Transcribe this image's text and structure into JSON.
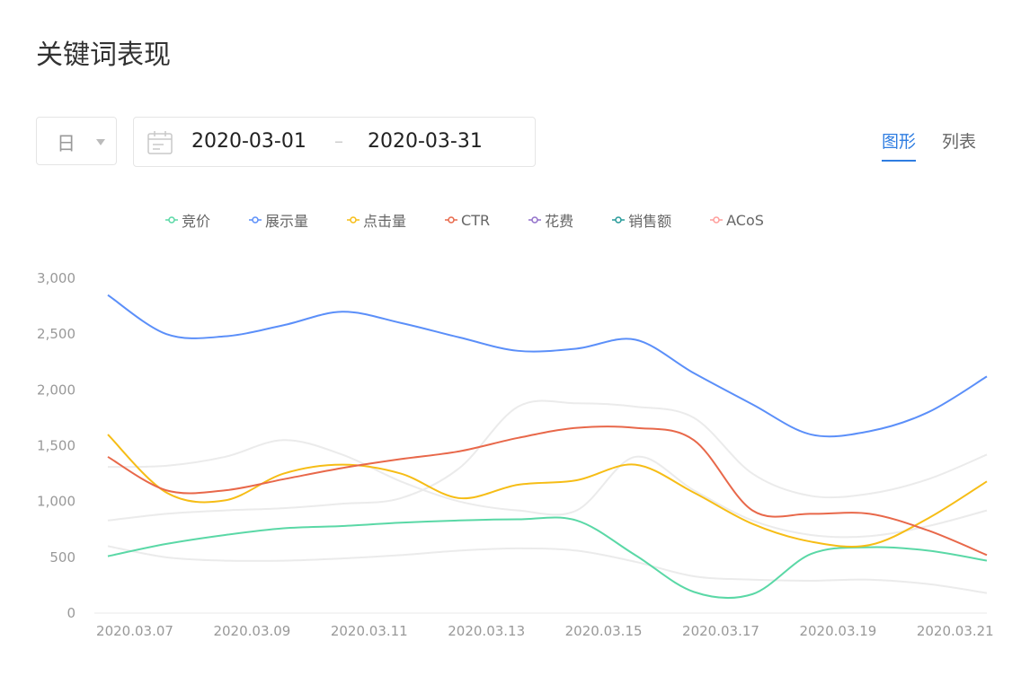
{
  "header": {
    "title": "关键词表现"
  },
  "controls": {
    "period": "日",
    "date_start": "2020-03-01",
    "date_separator": "–",
    "date_end": "2020-03-31",
    "tabs": [
      "图形",
      "列表"
    ]
  },
  "chart_data": {
    "type": "line",
    "categories": [
      "2020.03.07",
      null,
      "2020.03.09",
      null,
      "2020.03.11",
      null,
      "2020.03.13",
      null,
      "2020.03.15",
      null,
      "2020.03.17",
      null,
      "2020.03.19",
      null,
      "2020.03.21",
      null
    ],
    "ylim": [
      0,
      3000
    ],
    "yticks": [
      0,
      500,
      {
        "value": 1000,
        "label": "1,000"
      },
      {
        "value": 1500,
        "label": "1,500"
      },
      {
        "value": 2000,
        "label": "2,000"
      },
      {
        "value": 2500,
        "label": "2,500"
      },
      {
        "value": 3000,
        "label": "3,000"
      }
    ],
    "smooth": true,
    "muted_color": "#ebebeb",
    "series": [
      {
        "name": "竞价",
        "color": "#5ad8a6",
        "values": [
          510,
          620,
          700,
          760,
          780,
          810,
          830,
          840,
          830,
          520,
          190,
          170,
          530,
          590,
          560,
          470
        ]
      },
      {
        "name": "展示量",
        "color": "#5b8ff9",
        "values": [
          2850,
          2500,
          2480,
          2580,
          2700,
          2600,
          2470,
          2350,
          2370,
          2450,
          2150,
          1870,
          1600,
          1630,
          1800,
          2120
        ]
      },
      {
        "name": "点击量",
        "color": "#f6bd16",
        "values": [
          1600,
          1080,
          1010,
          1250,
          1330,
          1250,
          1030,
          1150,
          1190,
          1330,
          1080,
          800,
          640,
          610,
          850,
          1180
        ]
      },
      {
        "name": "CTR",
        "color": "#e8684a",
        "values": [
          1400,
          1100,
          1100,
          1200,
          1300,
          1380,
          1450,
          1570,
          1660,
          1660,
          1550,
          920,
          890,
          890,
          740,
          520
        ]
      },
      {
        "name": "花费",
        "color": "#9270ca",
        "muted": true,
        "values": [
          830,
          890,
          920,
          940,
          980,
          1030,
          1300,
          1850,
          1880,
          1850,
          1750,
          1250,
          1050,
          1070,
          1200,
          1420
        ]
      },
      {
        "name": "销售额",
        "color": "#269a99",
        "muted": true,
        "values": [
          600,
          500,
          470,
          470,
          490,
          520,
          560,
          580,
          560,
          460,
          330,
          300,
          290,
          300,
          260,
          180
        ]
      },
      {
        "name": "ACoS",
        "color": "#ff9d9a",
        "muted": true,
        "values": [
          1310,
          1320,
          1400,
          1550,
          1420,
          1180,
          1000,
          920,
          920,
          1400,
          1100,
          830,
          700,
          690,
          780,
          920
        ]
      }
    ]
  }
}
